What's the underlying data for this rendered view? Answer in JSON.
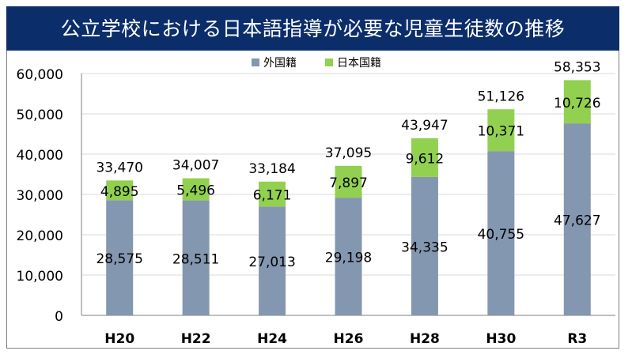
{
  "chart_data": {
    "type": "bar",
    "stacked": true,
    "title": "公立学校における日本語指導が必要な児童生徒数の推移",
    "categories": [
      "H20",
      "H22",
      "H24",
      "H26",
      "H28",
      "H30",
      "R3"
    ],
    "series": [
      {
        "name": "外国籍",
        "values": [
          28575,
          28511,
          27013,
          29198,
          34335,
          40755,
          47627
        ],
        "labels": [
          "28,575",
          "28,511",
          "27,013",
          "29,198",
          "34,335",
          "40,755",
          "47,627"
        ],
        "color": "#8497b0"
      },
      {
        "name": "日本国籍",
        "values": [
          4895,
          5496,
          6171,
          7897,
          9612,
          10371,
          10726
        ],
        "labels": [
          "4,895",
          "5,496",
          "6,171",
          "7,897",
          "9,612",
          "10,371",
          "10,726"
        ],
        "color": "#92d050"
      }
    ],
    "totals": [
      33470,
      34007,
      33184,
      37095,
      43947,
      51126,
      58353
    ],
    "total_labels": [
      "33,470",
      "34,007",
      "33,184",
      "37,095",
      "43,947",
      "51,126",
      "58,353"
    ],
    "y_ticks": [
      0,
      10000,
      20000,
      30000,
      40000,
      50000,
      60000
    ],
    "y_tick_labels": [
      "0",
      "10,000",
      "20,000",
      "30,000",
      "40,000",
      "50,000",
      "60,000"
    ],
    "ylim": [
      0,
      60000
    ],
    "grid": true,
    "legend_position": "top-center",
    "colors": {
      "title_bar": "#0b2e6b",
      "gridline": "#d9d9d9",
      "axis": "#7f7f7f"
    }
  }
}
